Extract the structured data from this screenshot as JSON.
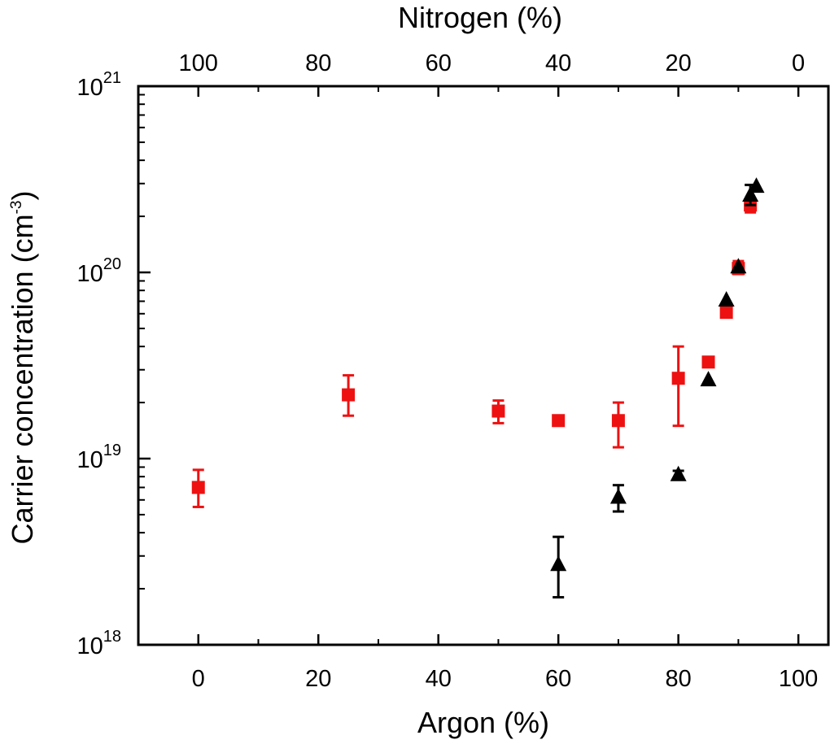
{
  "chart_data": {
    "type": "scatter",
    "xlabel": "Argon (%)",
    "x2label": "Nitrogen (%)",
    "ylabel_main": "Carrier concentration (cm",
    "ylabel_exp": "-3",
    "ylabel_close": ")",
    "xlim": [
      -10,
      105
    ],
    "x2lim": [
      110,
      -5
    ],
    "ylim": [
      1e+18,
      1e+21
    ],
    "yscale": "log",
    "xticks": [
      0,
      20,
      40,
      60,
      80,
      100
    ],
    "xtick_labels": [
      "0",
      "20",
      "40",
      "60",
      "80",
      "100"
    ],
    "x2ticks": [
      100,
      80,
      60,
      40,
      20,
      0
    ],
    "x2tick_labels": [
      "100",
      "80",
      "60",
      "40",
      "20",
      "0"
    ],
    "ytick_labels": [
      {
        "base": "10",
        "exp": "18"
      },
      {
        "base": "10",
        "exp": "19"
      },
      {
        "base": "10",
        "exp": "20"
      },
      {
        "base": "10",
        "exp": "21"
      }
    ],
    "grid": false,
    "series": [
      {
        "marker": "square",
        "color": "#ee1111",
        "points": [
          {
            "x": 0,
            "y": 7e+18,
            "ylo": 5.5e+18,
            "yhi": 8.7e+18
          },
          {
            "x": 25,
            "y": 2.2e+19,
            "ylo": 1.7e+19,
            "yhi": 2.8e+19
          },
          {
            "x": 50,
            "y": 1.8e+19,
            "ylo": 1.55e+19,
            "yhi": 2.05e+19
          },
          {
            "x": 60,
            "y": 1.6e+19
          },
          {
            "x": 70,
            "y": 1.6e+19,
            "ylo": 1.15e+19,
            "yhi": 2e+19
          },
          {
            "x": 80,
            "y": 2.7e+19,
            "ylo": 1.5e+19,
            "yhi": 4e+19
          },
          {
            "x": 85,
            "y": 3.3e+19
          },
          {
            "x": 88,
            "y": 6.1e+19
          },
          {
            "x": 90,
            "y": 1.05e+20,
            "ylo": 9.8e+19,
            "yhi": 1.15e+20
          },
          {
            "x": 92,
            "y": 2.3e+20,
            "ylo": 2.1e+20,
            "yhi": 2.5e+20
          }
        ]
      },
      {
        "marker": "triangle",
        "color": "#000000",
        "points": [
          {
            "x": 60,
            "y": 2.7e+18,
            "ylo": 1.8e+18,
            "yhi": 3.8e+18
          },
          {
            "x": 70,
            "y": 6.2e+18,
            "ylo": 5.2e+18,
            "yhi": 7.2e+18
          },
          {
            "x": 80,
            "y": 8.2e+18,
            "ylo": 7.8e+18,
            "yhi": 8.6e+18
          },
          {
            "x": 85,
            "y": 2.65e+19
          },
          {
            "x": 88,
            "y": 7.1e+19
          },
          {
            "x": 90,
            "y": 1.07e+20
          },
          {
            "x": 92,
            "y": 2.6e+20,
            "ylo": 2.3e+20,
            "yhi": 2.95e+20
          },
          {
            "x": 93,
            "y": 2.9e+20
          }
        ]
      }
    ]
  }
}
